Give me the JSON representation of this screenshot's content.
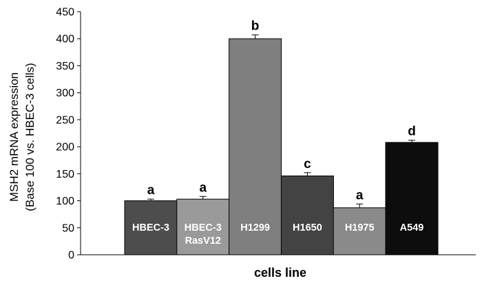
{
  "chart_data": {
    "type": "bar",
    "categories": [
      [
        "HBEC-3"
      ],
      [
        "HBEC-3",
        "RasV12"
      ],
      [
        "H1299"
      ],
      [
        "H1650"
      ],
      [
        "H1975"
      ],
      [
        "A549"
      ]
    ],
    "values": [
      100,
      103,
      400,
      146,
      87,
      208
    ],
    "errors": [
      3,
      5,
      7,
      6,
      7,
      4
    ],
    "significance_labels": [
      "a",
      "a",
      "b",
      "c",
      "a",
      "d"
    ],
    "bar_colors": [
      "#4d4d4d",
      "#9a9a9a",
      "#7f7f7f",
      "#434343",
      "#8a8a8a",
      "#0d0d0d"
    ],
    "title": "",
    "xlabel": "cells line",
    "ylabel": [
      "MSH2 mRNA expression",
      "(Base 100 vs. HBEC-3 cells)"
    ],
    "ylim": [
      0,
      450
    ],
    "yticks": [
      0,
      50,
      100,
      150,
      200,
      250,
      300,
      350,
      400,
      450
    ],
    "grid": false,
    "legend": "none"
  }
}
